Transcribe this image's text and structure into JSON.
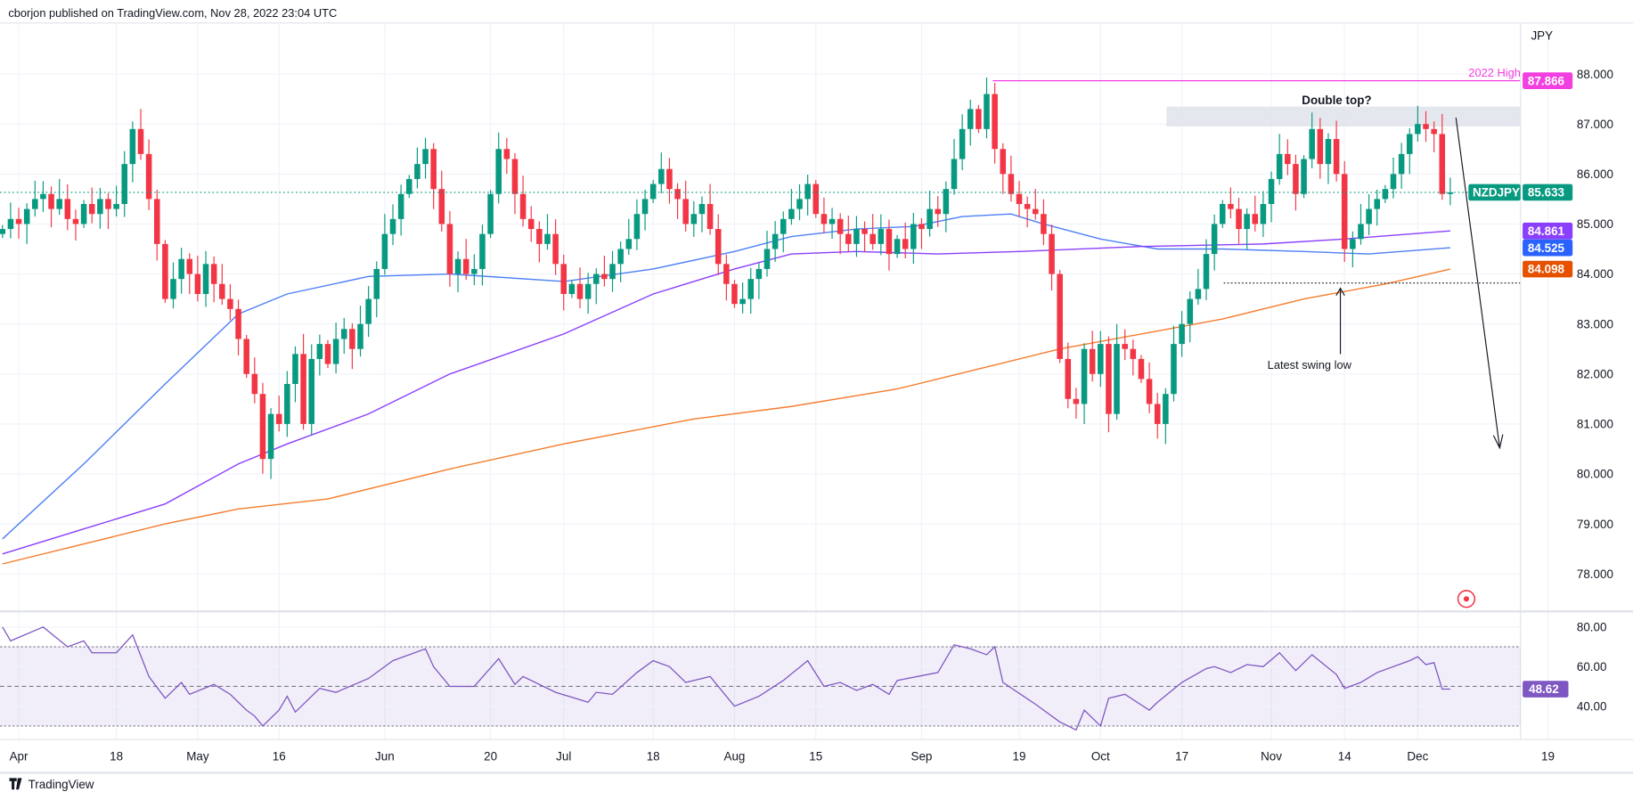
{
  "header": {
    "published": "cborjon published on TradingView.com, Nov 28, 2022 23:04 UTC"
  },
  "footer": {
    "logo_text": "TradingView"
  },
  "colors": {
    "up": "#089981",
    "down": "#f23645",
    "sma50": "#4d7ff5",
    "sma100": "#8a3ffc",
    "sma200": "#f57c2c",
    "rsi": "#7e57c2",
    "high_line": "#f23fe0"
  },
  "chart_data": {
    "type": "candlestick",
    "symbol": "NZDJPY",
    "currency": "JPY",
    "start_date": "2022-03-30",
    "end_date": "2022-11-29",
    "ylim": [
      77.3,
      88.2
    ],
    "y_ticks": [
      "78.000",
      "79.000",
      "80.000",
      "81.000",
      "82.000",
      "83.000",
      "84.000",
      "85.000",
      "86.000",
      "87.000",
      "88.000"
    ],
    "x_ticks": [
      {
        "label": "Apr",
        "bar": 2
      },
      {
        "label": "18",
        "bar": 14
      },
      {
        "label": "May",
        "bar": 24
      },
      {
        "label": "16",
        "bar": 34
      },
      {
        "label": "Jun",
        "bar": 47
      },
      {
        "label": "20",
        "bar": 60
      },
      {
        "label": "Jul",
        "bar": 69
      },
      {
        "label": "18",
        "bar": 80
      },
      {
        "label": "Aug",
        "bar": 90
      },
      {
        "label": "15",
        "bar": 100
      },
      {
        "label": "Sep",
        "bar": 113
      },
      {
        "label": "19",
        "bar": 125
      },
      {
        "label": "Oct",
        "bar": 135
      },
      {
        "label": "17",
        "bar": 145
      },
      {
        "label": "Nov",
        "bar": 156
      },
      {
        "label": "14",
        "bar": 165
      },
      {
        "label": "Dec",
        "bar": 174
      },
      {
        "label": "19",
        "bar": 190
      }
    ],
    "closes": [
      84.9,
      85.1,
      85.0,
      85.3,
      85.5,
      85.6,
      85.3,
      85.5,
      85.1,
      85.0,
      85.4,
      85.2,
      85.5,
      85.3,
      85.4,
      86.2,
      86.9,
      86.4,
      85.5,
      84.6,
      83.5,
      83.9,
      84.3,
      84.0,
      83.6,
      84.2,
      83.8,
      83.5,
      83.3,
      82.7,
      82.0,
      81.6,
      80.3,
      81.2,
      81.0,
      81.8,
      82.4,
      81.0,
      82.3,
      82.6,
      82.2,
      82.7,
      82.9,
      82.5,
      83.0,
      83.5,
      84.1,
      84.8,
      85.1,
      85.6,
      85.9,
      86.2,
      86.5,
      85.7,
      85.0,
      84.0,
      84.3,
      84.0,
      84.1,
      84.8,
      85.6,
      86.5,
      86.3,
      85.6,
      85.1,
      84.9,
      84.6,
      84.8,
      84.2,
      83.6,
      83.8,
      83.5,
      83.8,
      84.0,
      83.9,
      84.2,
      84.5,
      84.7,
      85.2,
      85.5,
      85.8,
      86.1,
      85.7,
      85.5,
      85.0,
      85.2,
      85.4,
      84.9,
      84.2,
      83.8,
      83.4,
      83.5,
      83.9,
      84.1,
      84.5,
      84.8,
      85.1,
      85.3,
      85.5,
      85.8,
      85.2,
      85.0,
      85.1,
      84.8,
      84.6,
      84.9,
      84.8,
      84.6,
      84.9,
      84.4,
      84.7,
      84.5,
      85.0,
      84.9,
      85.3,
      85.2,
      85.7,
      86.3,
      86.9,
      87.3,
      86.9,
      87.6,
      86.5,
      86.0,
      85.6,
      85.4,
      85.3,
      85.2,
      84.8,
      84.0,
      82.3,
      81.5,
      81.4,
      82.5,
      82.0,
      82.6,
      81.2,
      82.6,
      82.5,
      82.3,
      81.9,
      81.4,
      81.0,
      81.6,
      82.6,
      83.0,
      83.5,
      83.7,
      84.4,
      85.0,
      85.4,
      85.3,
      84.9,
      85.2,
      85.0,
      85.4,
      85.9,
      86.4,
      86.2,
      85.6,
      86.3,
      86.9,
      86.2,
      86.7,
      86.0,
      84.5,
      84.7,
      85.0,
      85.3,
      85.5,
      85.7,
      86.0,
      86.4,
      86.8,
      87.0,
      86.9,
      86.8,
      85.6,
      85.633
    ],
    "moving_averages": [
      {
        "name": "SMA 50",
        "last": "84.525",
        "color_key": "sma50",
        "points": [
          [
            0,
            78.7
          ],
          [
            10,
            80.2
          ],
          [
            20,
            81.8
          ],
          [
            29,
            83.2
          ],
          [
            35,
            83.6
          ],
          [
            45,
            83.95
          ],
          [
            55,
            84.0
          ],
          [
            69,
            83.85
          ],
          [
            80,
            84.1
          ],
          [
            90,
            84.45
          ],
          [
            97,
            84.75
          ],
          [
            105,
            84.9
          ],
          [
            112,
            84.95
          ],
          [
            118,
            85.15
          ],
          [
            124,
            85.2
          ],
          [
            128,
            85.0
          ],
          [
            135,
            84.7
          ],
          [
            142,
            84.5
          ],
          [
            150,
            84.5
          ],
          [
            160,
            84.45
          ],
          [
            168,
            84.4
          ],
          [
            178,
            84.525
          ]
        ]
      },
      {
        "name": "SMA 100",
        "last": "84.861",
        "color_key": "sma100",
        "points": [
          [
            0,
            78.4
          ],
          [
            10,
            78.9
          ],
          [
            20,
            79.4
          ],
          [
            29,
            80.2
          ],
          [
            35,
            80.6
          ],
          [
            45,
            81.2
          ],
          [
            55,
            82.0
          ],
          [
            69,
            82.8
          ],
          [
            80,
            83.6
          ],
          [
            90,
            84.1
          ],
          [
            97,
            84.4
          ],
          [
            105,
            84.45
          ],
          [
            115,
            84.4
          ],
          [
            125,
            84.45
          ],
          [
            140,
            84.55
          ],
          [
            155,
            84.6
          ],
          [
            165,
            84.7
          ],
          [
            178,
            84.861
          ]
        ]
      },
      {
        "name": "SMA 200",
        "last": "84.098",
        "color_key": "sma200",
        "points": [
          [
            0,
            78.2
          ],
          [
            10,
            78.6
          ],
          [
            20,
            79.0
          ],
          [
            29,
            79.3
          ],
          [
            40,
            79.5
          ],
          [
            55,
            80.1
          ],
          [
            69,
            80.6
          ],
          [
            85,
            81.1
          ],
          [
            97,
            81.35
          ],
          [
            110,
            81.7
          ],
          [
            120,
            82.1
          ],
          [
            130,
            82.5
          ],
          [
            140,
            82.8
          ],
          [
            150,
            83.1
          ],
          [
            160,
            83.5
          ],
          [
            170,
            83.8
          ],
          [
            178,
            84.098
          ]
        ]
      }
    ],
    "last_price": "85.633",
    "annotations": {
      "high_label": "2022 High",
      "high_value": "87.866",
      "high_bar": 122,
      "double_top": "Double top?",
      "zone": [
        86.95,
        87.35
      ],
      "swing_low_label": "Latest swing low",
      "swing_low_value": 83.82,
      "swing_low_bar": 165
    },
    "rsi": {
      "ylim": [
        26,
        84
      ],
      "levels": [
        70,
        50,
        30
      ],
      "y_ticks": [
        "80.00",
        "60.00",
        "40.00"
      ],
      "last": "48.62",
      "points": [
        [
          0,
          80
        ],
        [
          1,
          73
        ],
        [
          5,
          80
        ],
        [
          8,
          70
        ],
        [
          10,
          73
        ],
        [
          11,
          67
        ],
        [
          14,
          67
        ],
        [
          16,
          76
        ],
        [
          18,
          55
        ],
        [
          20,
          44
        ],
        [
          22,
          52
        ],
        [
          23,
          46
        ],
        [
          26,
          51
        ],
        [
          28,
          46
        ],
        [
          30,
          38
        ],
        [
          31,
          35
        ],
        [
          32,
          30
        ],
        [
          34,
          38
        ],
        [
          35,
          45
        ],
        [
          36,
          37
        ],
        [
          39,
          49
        ],
        [
          41,
          47
        ],
        [
          45,
          54
        ],
        [
          48,
          63
        ],
        [
          52,
          69
        ],
        [
          53,
          60
        ],
        [
          55,
          50
        ],
        [
          58,
          50
        ],
        [
          61,
          64
        ],
        [
          63,
          51
        ],
        [
          64,
          55
        ],
        [
          68,
          47
        ],
        [
          72,
          42
        ],
        [
          73,
          47
        ],
        [
          75,
          46
        ],
        [
          78,
          57
        ],
        [
          80,
          63
        ],
        [
          82,
          60
        ],
        [
          84,
          52
        ],
        [
          87,
          55
        ],
        [
          90,
          40
        ],
        [
          93,
          45
        ],
        [
          96,
          53
        ],
        [
          99,
          63
        ],
        [
          101,
          50
        ],
        [
          103,
          52
        ],
        [
          105,
          48
        ],
        [
          107,
          51
        ],
        [
          109,
          46
        ],
        [
          110,
          53
        ],
        [
          115,
          57
        ],
        [
          117,
          71
        ],
        [
          119,
          69
        ],
        [
          121,
          66
        ],
        [
          122,
          70
        ],
        [
          123,
          52
        ],
        [
          127,
          41
        ],
        [
          130,
          32
        ],
        [
          132,
          28
        ],
        [
          133,
          38
        ],
        [
          135,
          30
        ],
        [
          136,
          44
        ],
        [
          138,
          46
        ],
        [
          141,
          38
        ],
        [
          142,
          42
        ],
        [
          145,
          52
        ],
        [
          148,
          59
        ],
        [
          149,
          60
        ],
        [
          151,
          57
        ],
        [
          153,
          61
        ],
        [
          155,
          60
        ],
        [
          157,
          67
        ],
        [
          159,
          58
        ],
        [
          161,
          66
        ],
        [
          164,
          56
        ],
        [
          165,
          49
        ],
        [
          167,
          52
        ],
        [
          169,
          57
        ],
        [
          173,
          63
        ],
        [
          174,
          65
        ],
        [
          175,
          61
        ],
        [
          176,
          62
        ],
        [
          177,
          48.62
        ],
        [
          178,
          48.62
        ]
      ]
    }
  }
}
